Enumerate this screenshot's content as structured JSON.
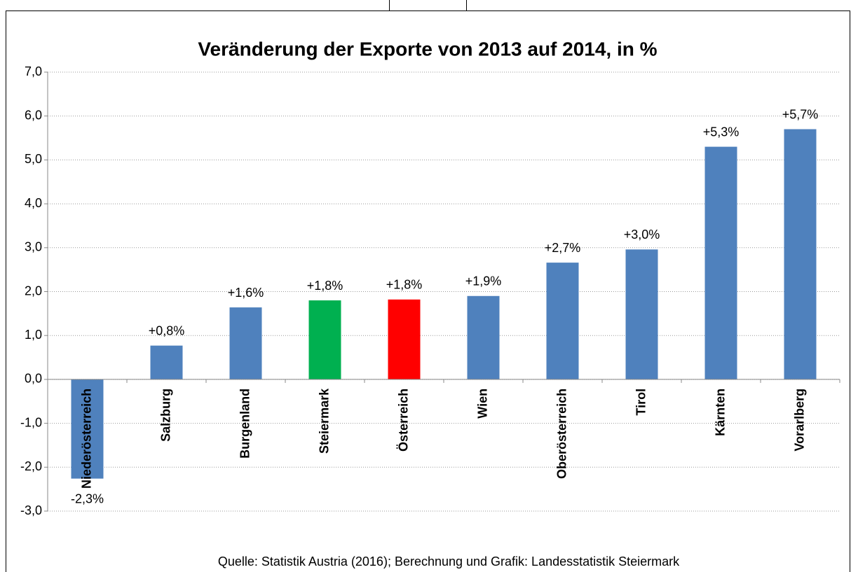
{
  "chart_data": {
    "type": "bar",
    "title": "Veränderung der Exporte von 2013 auf 2014, in %",
    "source": "Quelle: Statistik Austria (2016); Berechnung und Grafik: Landesstatistik Steiermark",
    "categories": [
      "Niederösterreich",
      "Salzburg",
      "Burgenland",
      "Steiermark",
      "Österreich",
      "Wien",
      "Oberösterreich",
      "Tirol",
      "Kärnten",
      "Vorarlberg"
    ],
    "values": [
      -2.26,
      0.77,
      1.64,
      1.8,
      1.82,
      1.9,
      2.66,
      2.96,
      5.3,
      5.7
    ],
    "value_labels": [
      "-2,3%",
      "+0,8%",
      "+1,6%",
      "+1,8%",
      "+1,8%",
      "+1,9%",
      "+2,7%",
      "+3,0%",
      "+5,3%",
      "+5,7%"
    ],
    "colors": [
      "#4f81bd",
      "#4f81bd",
      "#4f81bd",
      "#00b050",
      "#ff0000",
      "#4f81bd",
      "#4f81bd",
      "#4f81bd",
      "#4f81bd",
      "#4f81bd"
    ],
    "ylim": [
      -3,
      7
    ],
    "yticks": [
      {
        "value": -3,
        "label": "-3,0"
      },
      {
        "value": -2,
        "label": "-2,0"
      },
      {
        "value": -1,
        "label": "-1,0"
      },
      {
        "value": 0,
        "label": "0,0"
      },
      {
        "value": 1,
        "label": "1,0"
      },
      {
        "value": 2,
        "label": "2,0"
      },
      {
        "value": 3,
        "label": "3,0"
      },
      {
        "value": 4,
        "label": "4,0"
      },
      {
        "value": 5,
        "label": "5,0"
      },
      {
        "value": 6,
        "label": "6,0"
      },
      {
        "value": 7,
        "label": "7,0"
      }
    ],
    "grid": true
  }
}
